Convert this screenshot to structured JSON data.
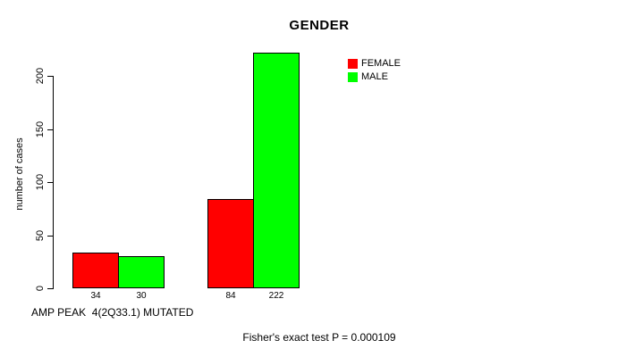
{
  "chart_data": {
    "type": "bar",
    "title": "GENDER",
    "ylabel": "number of cases",
    "xlabel": "AMP PEAK  4(2Q33.1) MUTATED",
    "footnote": "Fisher's exact test P = 0.000109",
    "series": [
      {
        "name": "FEMALE",
        "color": "#ff0000",
        "values": [
          34,
          84
        ]
      },
      {
        "name": "MALE",
        "color": "#00ff00",
        "values": [
          30,
          222
        ]
      }
    ],
    "bar_value_labels": [
      "34",
      "30",
      "84",
      "222"
    ],
    "yticks": [
      0,
      50,
      100,
      150,
      200
    ],
    "ylim": [
      0,
      222
    ],
    "grid": false,
    "legend_position": "top-right",
    "background_color": "#ffffff",
    "axis_color": "#000000"
  }
}
